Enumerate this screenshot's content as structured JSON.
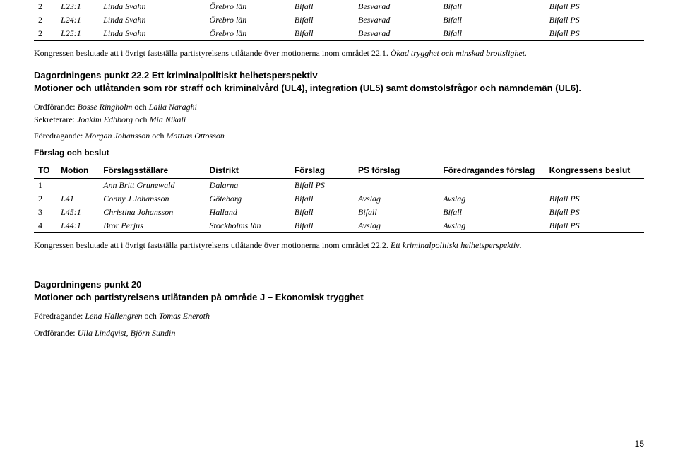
{
  "table1": {
    "rows": [
      {
        "to": "2",
        "mot": "L23:1",
        "name": "Linda Svahn",
        "dist": "Örebro län",
        "f": "Bifall",
        "psf": "Besvarad",
        "ff": "Bifall",
        "kb": "Bifall PS"
      },
      {
        "to": "2",
        "mot": "L24:1",
        "name": "Linda Svahn",
        "dist": "Örebro län",
        "f": "Bifall",
        "psf": "Besvarad",
        "ff": "Bifall",
        "kb": "Bifall PS"
      },
      {
        "to": "2",
        "mot": "L25:1",
        "name": "Linda Svahn",
        "dist": "Örebro län",
        "f": "Bifall",
        "psf": "Besvarad",
        "ff": "Bifall",
        "kb": "Bifall PS"
      }
    ]
  },
  "para1a": "Kongressen beslutade att i övrigt fastställa partistyrelsens utlåtande över motionerna inom området 22.1. ",
  "para1b": "Ökad trygghet och minskad brottslighet.",
  "heading1": "Dagordningens punkt 22.2 Ett kriminalpolitiskt helhetsperspektiv",
  "sub1": "Motioner och utlåtanden som rör straff och kriminalvård (UL4), integration (UL5) samt domstolsfrågor och nämndemän (UL6).",
  "line1a": "Ordförande: ",
  "line1b": "Bosse Ringholm",
  "line1c": " och ",
  "line1d": "Laila Naraghi",
  "line2a": "Sekreterare: ",
  "line2b": "Joakim Edhborg",
  "line2c": " och ",
  "line2d": "Mia Nikali",
  "line3a": "Föredragande: ",
  "line3b": "Morgan Johansson",
  "line3c": " och ",
  "line3d": "Mattias Ottosson",
  "bold1": "Förslag och beslut",
  "thead": {
    "to": "TO",
    "mot": "Motion",
    "name": "Förslagsställare",
    "dist": "Distrikt",
    "f": "Förslag",
    "psf": "PS förslag",
    "ff": "Föredragandes förslag",
    "kb": "Kongressens beslut"
  },
  "table2": {
    "rows": [
      {
        "to": "1",
        "mot": "",
        "name": "Ann Britt Grunewald",
        "dist": "Dalarna",
        "f": "Bifall PS",
        "psf": "",
        "ff": "",
        "kb": ""
      },
      {
        "to": "2",
        "mot": "L41",
        "name": "Conny J Johansson",
        "dist": "Göteborg",
        "f": "Bifall",
        "psf": "Avslag",
        "ff": "Avslag",
        "kb": "Bifall PS"
      },
      {
        "to": "3",
        "mot": "L45:1",
        "name": "Christina Johansson",
        "dist": "Halland",
        "f": "Bifall",
        "psf": "Bifall",
        "ff": "Bifall",
        "kb": "Bifall PS"
      },
      {
        "to": "4",
        "mot": "L44:1",
        "name": "Bror Perjus",
        "dist": "Stockholms län",
        "f": "Bifall",
        "psf": "Avslag",
        "ff": "Avslag",
        "kb": "Bifall PS"
      }
    ]
  },
  "para2a": "Kongressen beslutade att i övrigt fastställa partistyrelsens utlåtande över motionerna inom området 22.2. ",
  "para2b": "Ett kriminalpolitiskt helhetsperspektiv",
  "heading2": "Dagordningens punkt 20",
  "sub2": "Motioner och partistyrelsens utlåtanden på område J – Ekonomisk trygghet",
  "line4a": "Föredragande: ",
  "line4b": "Lena Hallengren",
  "line4c": " och ",
  "line4d": "Tomas Eneroth",
  "line5a": "Ordförande: ",
  "line5b": "Ulla Lindqvist, Björn Sundin",
  "pagenum": "15"
}
